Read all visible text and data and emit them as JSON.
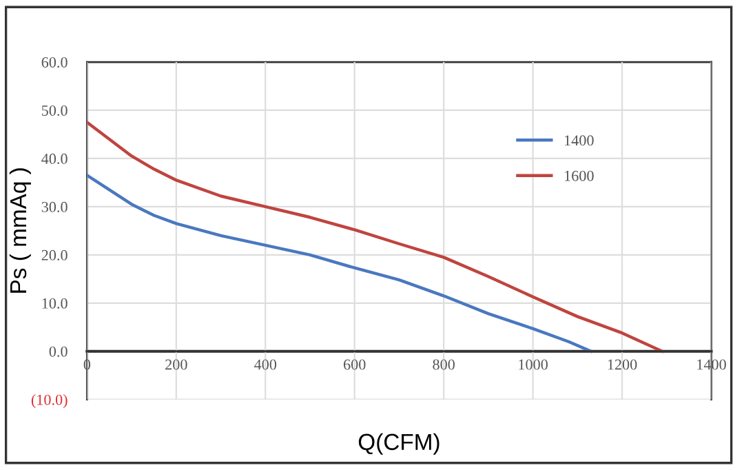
{
  "chart_data": {
    "type": "line",
    "xlabel": "Q(CFM)",
    "ylabel": "Ps ( mmAq )",
    "xlim": [
      0,
      1400
    ],
    "xticks": [
      0,
      200,
      400,
      600,
      800,
      1000,
      1200,
      1400
    ],
    "ylim": [
      -10,
      60
    ],
    "yticks": [
      {
        "value": -10,
        "label": "(10.0)"
      },
      {
        "value": 0,
        "label": "0.0"
      },
      {
        "value": 10,
        "label": "10.0"
      },
      {
        "value": 20,
        "label": "20.0"
      },
      {
        "value": 30,
        "label": "30.0"
      },
      {
        "value": 40,
        "label": "40.0"
      },
      {
        "value": 50,
        "label": "50.0"
      },
      {
        "value": 60,
        "label": "60.0"
      }
    ],
    "grid": true,
    "legend": "top right",
    "marker": "none",
    "line_style": "solid",
    "series": [
      {
        "name": "1400",
        "color": "#4a78c0",
        "x": [
          0,
          50,
          100,
          150,
          200,
          300,
          400,
          500,
          600,
          700,
          800,
          900,
          1000,
          1080,
          1130
        ],
        "values": [
          36.5,
          33.5,
          30.5,
          28.2,
          26.5,
          24,
          22,
          20,
          17.3,
          14.8,
          11.5,
          7.8,
          4.7,
          2,
          0
        ]
      },
      {
        "name": "1600",
        "color": "#c0443f",
        "x": [
          0,
          50,
          100,
          150,
          200,
          300,
          400,
          500,
          600,
          700,
          800,
          900,
          1000,
          1100,
          1200,
          1290
        ],
        "values": [
          47.5,
          44,
          40.5,
          37.8,
          35.5,
          32.2,
          30,
          27.8,
          25.2,
          22.3,
          19.5,
          15.5,
          11.3,
          7.2,
          3.8,
          0
        ]
      }
    ]
  }
}
